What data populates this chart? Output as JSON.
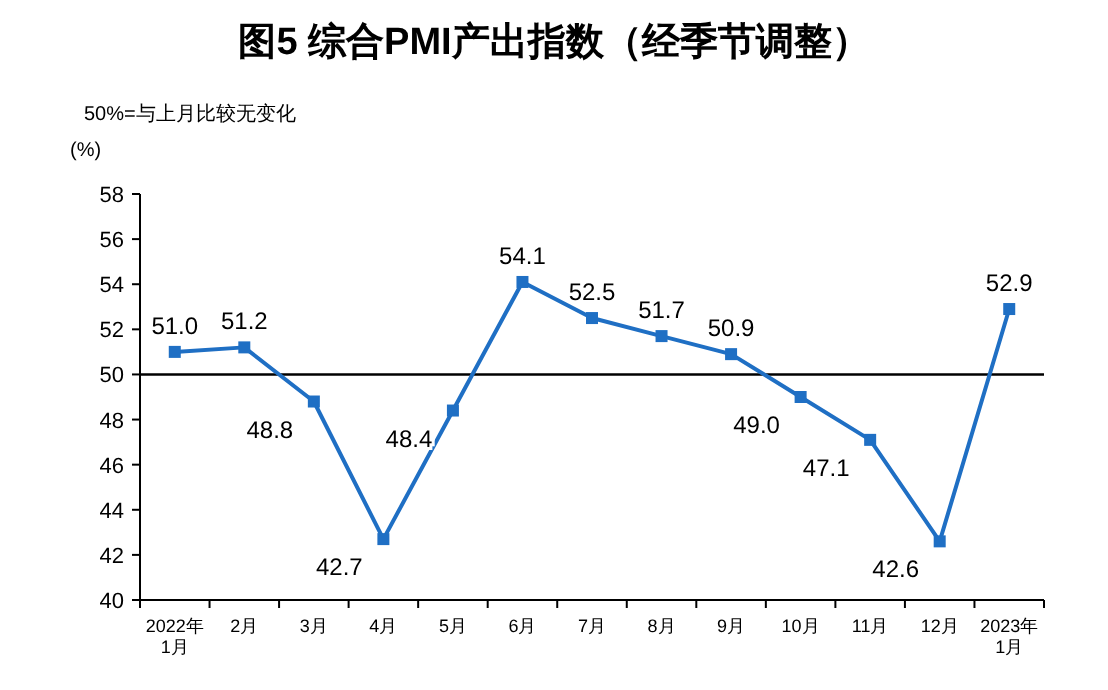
{
  "chart_data": {
    "type": "line",
    "title": "图5 综合PMI产出指数（经季节调整）",
    "ylabel": "(%)",
    "annotations": [
      "50%=与上月比较无变化"
    ],
    "categories": [
      "2022年\n1月",
      "2月",
      "3月",
      "4月",
      "5月",
      "6月",
      "7月",
      "8月",
      "9月",
      "10月",
      "11月",
      "12月",
      "2023年\n1月"
    ],
    "series": [
      {
        "color": "#1f6fc4",
        "values": [
          51.0,
          51.2,
          48.8,
          42.7,
          48.4,
          54.1,
          52.5,
          51.7,
          50.9,
          49.0,
          47.1,
          42.6,
          52.9
        ],
        "value_labels": [
          "51.0",
          "51.2",
          "48.8",
          "42.7",
          "48.4",
          "54.1",
          "52.5",
          "51.7",
          "50.9",
          "49.0",
          "47.1",
          "42.6",
          "52.9"
        ]
      }
    ],
    "ylim": [
      40,
      58
    ],
    "yticks": [
      40,
      42,
      44,
      46,
      48,
      50,
      52,
      54,
      56,
      58
    ],
    "ref_lines": [
      {
        "axis": "y",
        "value": 50,
        "color": "#000000"
      }
    ],
    "marker": "square",
    "grid": false
  }
}
